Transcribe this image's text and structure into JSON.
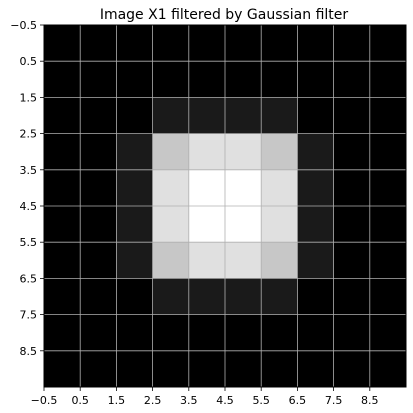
{
  "chart_data": {
    "type": "heatmap",
    "title": "Image X1 filtered by Gaussian filter",
    "xlabel": "",
    "ylabel": "",
    "xlim": [
      -0.5,
      9.5
    ],
    "ylim": [
      9.5,
      -0.5
    ],
    "y_axis_inverted": true,
    "grid": true,
    "colormap": "gray",
    "xtick_values": [
      -0.5,
      0.5,
      1.5,
      2.5,
      3.5,
      4.5,
      5.5,
      6.5,
      7.5,
      8.5
    ],
    "xtick_labels": [
      "−0.5",
      "0.5",
      "1.5",
      "2.5",
      "3.5",
      "4.5",
      "5.5",
      "6.5",
      "7.5",
      "8.5"
    ],
    "ytick_values": [
      -0.5,
      0.5,
      1.5,
      2.5,
      3.5,
      4.5,
      5.5,
      6.5,
      7.5,
      8.5
    ],
    "ytick_labels": [
      "−0.5",
      "0.5",
      "1.5",
      "2.5",
      "3.5",
      "4.5",
      "5.5",
      "6.5",
      "7.5",
      "8.5"
    ],
    "values": [
      [
        0,
        0,
        0,
        0,
        0,
        0,
        0,
        0,
        0,
        0
      ],
      [
        0,
        0,
        0,
        0,
        0,
        0,
        0,
        0,
        0,
        0
      ],
      [
        0,
        0,
        0,
        0.1,
        0.1,
        0.1,
        0.1,
        0,
        0,
        0
      ],
      [
        0,
        0,
        0.1,
        0.78,
        0.88,
        0.88,
        0.78,
        0.1,
        0,
        0
      ],
      [
        0,
        0,
        0.1,
        0.88,
        1.0,
        1.0,
        0.88,
        0.1,
        0,
        0
      ],
      [
        0,
        0,
        0.1,
        0.88,
        1.0,
        1.0,
        0.88,
        0.1,
        0,
        0
      ],
      [
        0,
        0,
        0.1,
        0.78,
        0.88,
        0.88,
        0.78,
        0.1,
        0,
        0
      ],
      [
        0,
        0,
        0,
        0.1,
        0.1,
        0.1,
        0.1,
        0,
        0,
        0
      ],
      [
        0,
        0,
        0,
        0,
        0,
        0,
        0,
        0,
        0,
        0
      ],
      [
        0,
        0,
        0,
        0,
        0,
        0,
        0,
        0,
        0,
        0
      ]
    ]
  }
}
